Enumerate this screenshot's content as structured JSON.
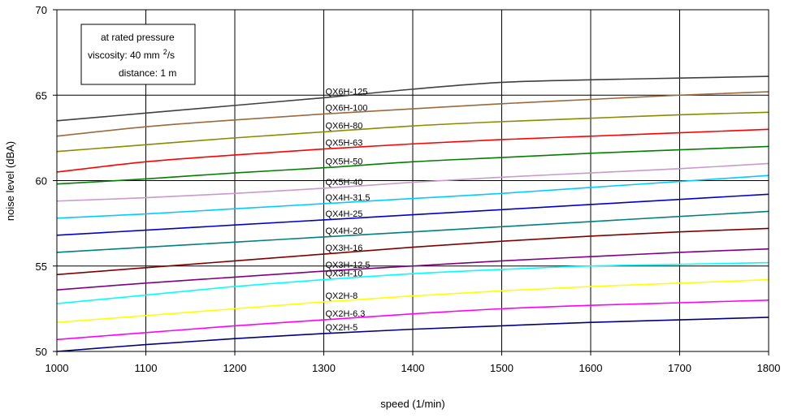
{
  "chart_data": {
    "type": "line",
    "xlabel": "speed (1/min)",
    "ylabel": "noise level (dBA)",
    "xlim": [
      1000,
      1800
    ],
    "ylim": [
      50,
      70
    ],
    "x_ticks": [
      1000,
      1100,
      1200,
      1300,
      1400,
      1500,
      1600,
      1700,
      1800
    ],
    "y_ticks": [
      50,
      55,
      60,
      65,
      70
    ],
    "grid": "vertical lines at x ticks, horizontal lines at y ticks",
    "annotation": {
      "line1": "at rated pressure",
      "line2_prefix": "viscosity: 40 mm",
      "line2_sup": "2",
      "line2_suffix": "/s",
      "line3": "distance: 1 m"
    },
    "x": [
      1000,
      1100,
      1200,
      1300,
      1400,
      1500,
      1600,
      1700,
      1800
    ],
    "series": [
      {
        "name": "QX6H-125",
        "color": "#404040",
        "values": [
          63.5,
          63.95,
          64.4,
          64.85,
          65.35,
          65.75,
          65.9,
          66.0,
          66.1
        ]
      },
      {
        "name": "QX6H-100",
        "color": "#9c6a3a",
        "values": [
          62.6,
          63.15,
          63.55,
          63.9,
          64.2,
          64.5,
          64.75,
          65.0,
          65.2
        ]
      },
      {
        "name": "QX6H-80",
        "color": "#8b8b00",
        "values": [
          61.7,
          62.1,
          62.5,
          62.85,
          63.2,
          63.45,
          63.65,
          63.85,
          64.0
        ]
      },
      {
        "name": "QX5H-63",
        "color": "#ff0000",
        "values": [
          60.5,
          61.1,
          61.5,
          61.85,
          62.15,
          62.4,
          62.6,
          62.8,
          63.0
        ]
      },
      {
        "name": "QX5H-50",
        "color": "#008000",
        "values": [
          59.8,
          60.1,
          60.45,
          60.75,
          61.1,
          61.35,
          61.6,
          61.8,
          62.0
        ]
      },
      {
        "name": "QX5H-40",
        "color": "#cc99cc",
        "values": [
          58.8,
          59.0,
          59.25,
          59.55,
          59.9,
          60.2,
          60.45,
          60.7,
          61.0
        ]
      },
      {
        "name": "QX4H-31.5",
        "color": "#00ccff",
        "values": [
          57.8,
          58.05,
          58.35,
          58.65,
          58.95,
          59.25,
          59.6,
          59.95,
          60.3
        ]
      },
      {
        "name": "QX4H-25",
        "color": "#0000cc",
        "values": [
          56.8,
          57.1,
          57.4,
          57.7,
          58.0,
          58.3,
          58.6,
          58.9,
          59.2
        ]
      },
      {
        "name": "QX4H-20",
        "color": "#008080",
        "values": [
          55.8,
          56.1,
          56.4,
          56.7,
          57.0,
          57.3,
          57.6,
          57.9,
          58.2
        ]
      },
      {
        "name": "QX3H-16",
        "color": "#800000",
        "values": [
          54.5,
          54.9,
          55.3,
          55.7,
          56.1,
          56.45,
          56.75,
          57.0,
          57.2
        ]
      },
      {
        "name": "QX3H-12.5",
        "color": "#800080",
        "values": [
          53.6,
          54.0,
          54.35,
          54.7,
          55.0,
          55.3,
          55.55,
          55.8,
          56.0
        ]
      },
      {
        "name": "QX3H-10",
        "color": "#00ffff",
        "values": [
          52.8,
          53.3,
          53.8,
          54.2,
          54.55,
          54.8,
          55.0,
          55.1,
          55.2
        ]
      },
      {
        "name": "QX2H-8",
        "color": "#ffff00",
        "values": [
          51.7,
          52.1,
          52.5,
          52.9,
          53.25,
          53.55,
          53.8,
          54.0,
          54.2
        ]
      },
      {
        "name": "QX2H-6.3",
        "color": "#ff00ff",
        "values": [
          50.7,
          51.1,
          51.5,
          51.85,
          52.2,
          52.5,
          52.7,
          52.85,
          53.0
        ]
      },
      {
        "name": "QX2H-5",
        "color": "#000080",
        "values": [
          50.0,
          50.4,
          50.75,
          51.05,
          51.3,
          51.5,
          51.7,
          51.85,
          52.0
        ]
      }
    ]
  }
}
